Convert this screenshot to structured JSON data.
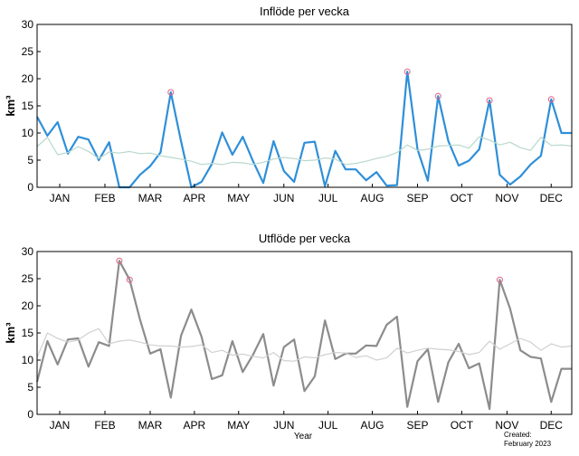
{
  "x_axis_label": "Year",
  "footer": {
    "created_label": "Created:",
    "created_date": "February 2023"
  },
  "chart_data": [
    {
      "type": "line",
      "title": "Inflöde per vecka",
      "ylabel": "km³",
      "ylim": [
        0,
        30
      ],
      "yticks": [
        0,
        5,
        10,
        15,
        20,
        25,
        30
      ],
      "xlim": [
        0,
        52
      ],
      "month_labels": [
        "JAN",
        "FEB",
        "MAR",
        "APR",
        "MAY",
        "JUN",
        "JUL",
        "AUG",
        "SEP",
        "OCT",
        "NOV",
        "DEC"
      ],
      "month_positions": [
        2.2,
        6.6,
        11.0,
        15.3,
        19.6,
        24.0,
        28.3,
        32.6,
        37.0,
        41.3,
        45.7,
        50.0
      ],
      "grid": false,
      "colors": {
        "main": "#2f8fd8",
        "reference": "#b8d8cc",
        "highlight": "#e06080"
      },
      "series": [
        {
          "role": "weekly",
          "x": [
            0,
            1,
            2,
            3,
            4,
            5,
            6,
            7,
            8,
            9,
            10,
            11,
            12,
            13,
            14,
            15,
            16,
            17,
            18,
            19,
            20,
            21,
            22,
            23,
            24,
            25,
            26,
            27,
            28,
            29,
            30,
            31,
            32,
            33,
            34,
            35,
            36,
            37,
            38,
            39,
            40,
            41,
            42,
            43,
            44,
            45,
            46,
            47,
            48,
            49,
            50,
            51,
            52
          ],
          "values": [
            13.0,
            9.5,
            12.0,
            6.2,
            9.3,
            8.8,
            5.0,
            8.3,
            0.0,
            0.0,
            2.3,
            3.9,
            6.4,
            17.5,
            8.5,
            0.0,
            1.0,
            4.3,
            10.1,
            6.0,
            9.3,
            4.8,
            0.8,
            8.5,
            3.0,
            1.0,
            8.2,
            8.4,
            0.2,
            6.7,
            3.3,
            3.3,
            1.3,
            2.8,
            0.3,
            0.4,
            21.3,
            7.0,
            1.2,
            16.8,
            8.5,
            4.0,
            4.9,
            7.0,
            16.0,
            2.3,
            0.5,
            2.0,
            4.2,
            5.8,
            16.2,
            10.0,
            10.0
          ]
        },
        {
          "role": "reference",
          "x": [
            0,
            1,
            2,
            3,
            4,
            5,
            6,
            7,
            8,
            9,
            10,
            11,
            12,
            13,
            14,
            15,
            16,
            17,
            18,
            19,
            20,
            21,
            22,
            23,
            24,
            25,
            26,
            27,
            28,
            29,
            30,
            31,
            32,
            33,
            34,
            35,
            36,
            37,
            38,
            39,
            40,
            41,
            42,
            43,
            44,
            45,
            46,
            47,
            48,
            49,
            50,
            51,
            52
          ],
          "values": [
            7.5,
            9.2,
            6.0,
            6.4,
            7.5,
            6.6,
            5.3,
            6.5,
            6.3,
            6.6,
            6.2,
            6.3,
            5.8,
            5.5,
            5.2,
            4.8,
            4.2,
            4.4,
            4.2,
            4.6,
            4.5,
            4.2,
            4.6,
            5.2,
            5.5,
            5.3,
            4.9,
            5.0,
            5.4,
            5.2,
            4.2,
            4.4,
            4.8,
            5.3,
            5.7,
            6.4,
            7.8,
            6.8,
            7.0,
            7.6,
            7.7,
            7.8,
            7.2,
            9.3,
            8.7,
            7.8,
            8.3,
            7.3,
            6.8,
            9.2,
            7.7,
            7.8,
            7.6
          ]
        }
      ],
      "highlighted_points": [
        {
          "x": 13,
          "y": 17.5
        },
        {
          "x": 36,
          "y": 21.3
        },
        {
          "x": 39,
          "y": 16.8
        },
        {
          "x": 44,
          "y": 16.0
        },
        {
          "x": 50,
          "y": 16.2
        }
      ]
    },
    {
      "type": "line",
      "title": "Utflöde per vecka",
      "ylabel": "km³",
      "ylim": [
        0,
        30
      ],
      "yticks": [
        0,
        5,
        10,
        15,
        20,
        25,
        30
      ],
      "xlim": [
        0,
        52
      ],
      "month_labels": [
        "JAN",
        "FEB",
        "MAR",
        "APR",
        "MAY",
        "JUN",
        "JUL",
        "AUG",
        "SEP",
        "OCT",
        "NOV",
        "DEC"
      ],
      "month_positions": [
        2.2,
        6.6,
        11.0,
        15.3,
        19.6,
        24.0,
        28.3,
        32.6,
        37.0,
        41.3,
        45.7,
        50.0
      ],
      "grid": false,
      "colors": {
        "main": "#8c8c8c",
        "reference": "#d0d0d0",
        "highlight": "#e06080"
      },
      "series": [
        {
          "role": "weekly",
          "x": [
            0,
            1,
            2,
            3,
            4,
            5,
            6,
            7,
            8,
            9,
            10,
            11,
            12,
            13,
            14,
            15,
            16,
            17,
            18,
            19,
            20,
            21,
            22,
            23,
            24,
            25,
            26,
            27,
            28,
            29,
            30,
            31,
            32,
            33,
            34,
            35,
            36,
            37,
            38,
            39,
            40,
            41,
            42,
            43,
            44,
            45,
            46,
            47,
            48,
            49,
            50,
            51,
            52
          ],
          "values": [
            6.0,
            13.5,
            9.2,
            13.8,
            14.0,
            8.8,
            13.3,
            12.6,
            28.3,
            24.8,
            17.5,
            11.2,
            12.0,
            3.1,
            14.5,
            19.3,
            14.3,
            6.5,
            7.2,
            13.5,
            7.8,
            11.0,
            14.8,
            5.3,
            12.4,
            13.8,
            4.3,
            7.0,
            17.3,
            10.2,
            11.2,
            11.2,
            12.7,
            12.6,
            16.5,
            18.0,
            1.4,
            9.8,
            12.0,
            2.3,
            9.6,
            13.0,
            8.5,
            9.4,
            1.0,
            24.8,
            19.5,
            11.8,
            10.6,
            10.3,
            2.3,
            8.4,
            8.4
          ]
        },
        {
          "role": "reference",
          "x": [
            0,
            1,
            2,
            3,
            4,
            5,
            6,
            7,
            8,
            9,
            10,
            11,
            12,
            13,
            14,
            15,
            16,
            17,
            18,
            19,
            20,
            21,
            22,
            23,
            24,
            25,
            26,
            27,
            28,
            29,
            30,
            31,
            32,
            33,
            34,
            35,
            36,
            37,
            38,
            39,
            40,
            41,
            42,
            43,
            44,
            45,
            46,
            47,
            48,
            49,
            50,
            51,
            52
          ],
          "values": [
            10.5,
            15.0,
            14.0,
            13.3,
            13.7,
            15.0,
            15.8,
            13.0,
            13.5,
            13.7,
            13.3,
            12.8,
            12.6,
            12.6,
            12.4,
            12.5,
            12.8,
            11.4,
            11.8,
            10.9,
            11.1,
            10.7,
            10.4,
            11.4,
            9.9,
            9.8,
            10.6,
            10.4,
            11.0,
            11.4,
            11.3,
            10.5,
            10.8,
            10.0,
            10.4,
            12.2,
            11.3,
            11.8,
            12.2,
            12.0,
            11.9,
            11.6,
            11.0,
            11.4,
            13.5,
            12.0,
            13.0,
            14.0,
            13.3,
            11.8,
            13.0,
            12.4,
            12.6
          ]
        }
      ],
      "highlighted_points": [
        {
          "x": 8,
          "y": 28.3
        },
        {
          "x": 9,
          "y": 24.8
        },
        {
          "x": 45,
          "y": 24.8
        }
      ]
    }
  ]
}
